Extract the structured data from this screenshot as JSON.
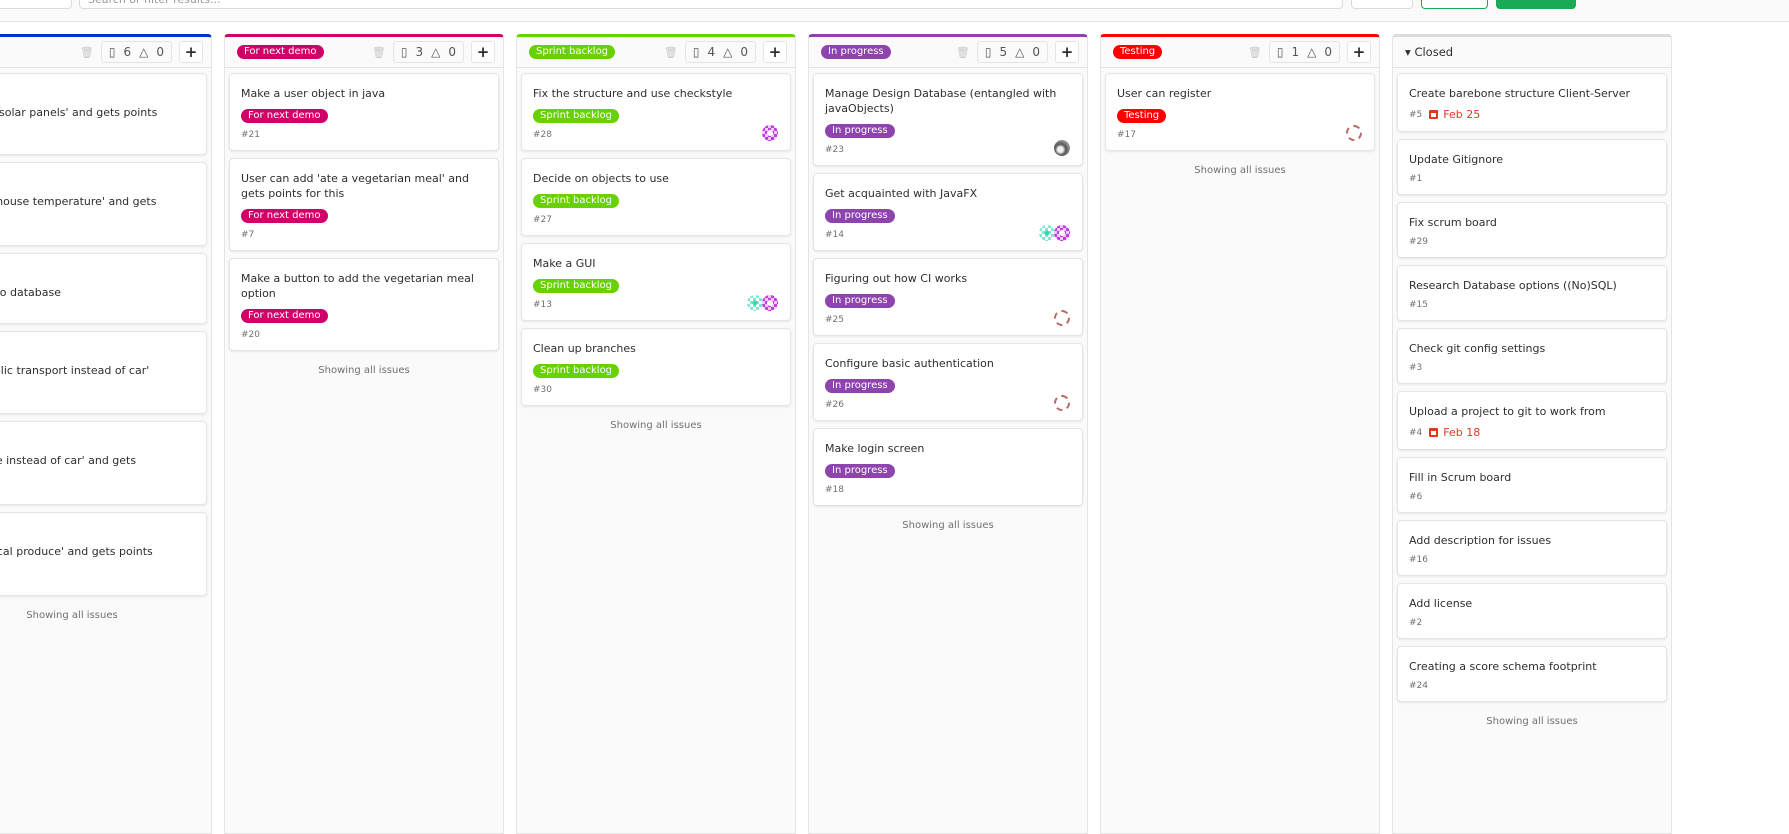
{
  "topbar": {
    "search_placeholder": "Search or filter results..."
  },
  "colors": {
    "blue": "#0033cc",
    "for_next_demo": "#d10069",
    "sprint_backlog": "#69d100",
    "in_progress": "#8e44ad",
    "testing": "#ff0000",
    "closed": "#dbdbdb",
    "due": "#db3b21"
  },
  "showing_all": "Showing all issues",
  "columns": [
    {
      "label": "",
      "color": "#0033cc",
      "issues": 6,
      "weight": 0,
      "cards": [
        {
          "title": "ld 'installing solar panels' and gets points",
          "min": 82
        },
        {
          "title": "ld 'lowering house temperature' and gets\nhis",
          "min": 84
        },
        {
          "title": "gin method to database",
          "min": 71
        },
        {
          "title": "ld 'Using public transport instead of car'\noints for this",
          "min": 83
        },
        {
          "title": "ld 'Using bike instead of car' and gets\nhis",
          "min": 84
        },
        {
          "title": "ld 'Buying local produce' and gets points",
          "min": 84
        }
      ]
    },
    {
      "label": "For next demo",
      "color": "#d10069",
      "issues": 3,
      "weight": 0,
      "cards": [
        {
          "title": "Make a user object in java",
          "label": "For next demo",
          "num": "#21"
        },
        {
          "title": "User can add 'ate a vegetarian meal' and gets points for this",
          "label": "For next demo",
          "num": "#7"
        },
        {
          "title": "Make a button to add the vegetarian meal option",
          "label": "For next demo",
          "num": "#20"
        }
      ]
    },
    {
      "label": "Sprint backlog",
      "color": "#69d100",
      "issues": 4,
      "weight": 0,
      "cards": [
        {
          "title": "Fix the structure and use checkstyle",
          "label": "Sprint backlog",
          "num": "#28",
          "avatars": [
            "pink"
          ]
        },
        {
          "title": "Decide on objects to use",
          "label": "Sprint backlog",
          "num": "#27"
        },
        {
          "title": "Make a GUI",
          "label": "Sprint backlog",
          "num": "#13",
          "avatars": [
            "teal",
            "pink"
          ]
        },
        {
          "title": "Clean up branches",
          "label": "Sprint backlog",
          "num": "#30"
        }
      ]
    },
    {
      "label": "In progress",
      "color": "#8e44ad",
      "issues": 5,
      "weight": 0,
      "cards": [
        {
          "title": "Manage Design Database (entangled with javaObjects)",
          "label": "In progress",
          "num": "#23",
          "avatars": [
            "photo"
          ]
        },
        {
          "title": "Get acquainted with JavaFX",
          "label": "In progress",
          "num": "#14",
          "avatars": [
            "teal",
            "pink"
          ]
        },
        {
          "title": "Figuring out how CI works",
          "label": "In progress",
          "num": "#25",
          "avatars": [
            "ring"
          ]
        },
        {
          "title": "Configure basic authentication",
          "label": "In progress",
          "num": "#26",
          "avatars": [
            "ring"
          ]
        },
        {
          "title": "Make login screen",
          "label": "In progress",
          "num": "#18"
        }
      ]
    },
    {
      "label": "Testing",
      "color": "#ff0000",
      "issues": 1,
      "weight": 0,
      "cards": [
        {
          "title": "User can register",
          "label": "Testing",
          "num": "#17",
          "avatars": [
            "ring"
          ]
        }
      ]
    },
    {
      "label": "Closed",
      "closed": true,
      "color": "#dbdbdb",
      "cards": [
        {
          "title": "Create barebone structure Client-Server",
          "num": "#5",
          "due": "Feb 25"
        },
        {
          "title": "Update Gitignore",
          "num": "#1"
        },
        {
          "title": "Fix scrum board",
          "num": "#29"
        },
        {
          "title": "Research Database options ((No)SQL)",
          "num": "#15"
        },
        {
          "title": "Check git config settings",
          "num": "#3"
        },
        {
          "title": "Upload a project to git to work from",
          "num": "#4",
          "due": "Feb 18"
        },
        {
          "title": "Fill in Scrum board",
          "num": "#6"
        },
        {
          "title": "Add description for issues",
          "num": "#16"
        },
        {
          "title": "Add license",
          "num": "#2"
        },
        {
          "title": "Creating a score schema footprint",
          "num": "#24"
        }
      ]
    }
  ]
}
